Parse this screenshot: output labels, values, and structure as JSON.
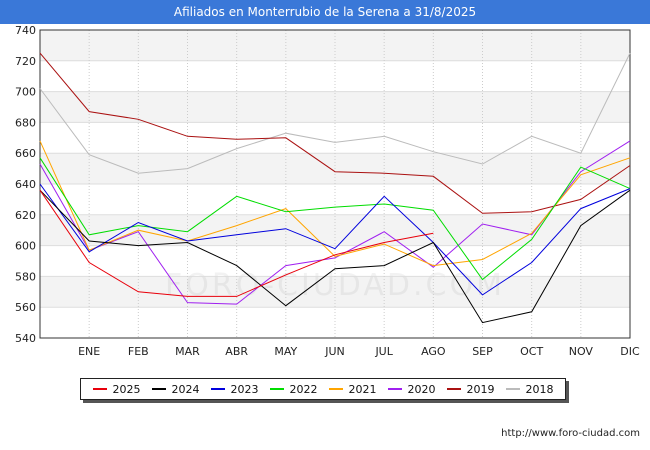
{
  "chart_data": {
    "type": "line",
    "title": "Afiliados en Monterrubio de la Serena a 31/8/2025",
    "xlabel": "",
    "ylabel": "",
    "ylim": [
      540,
      740
    ],
    "yticks": [
      540,
      560,
      580,
      600,
      620,
      640,
      660,
      680,
      700,
      720,
      740
    ],
    "categories": [
      "",
      "ENE",
      "FEB",
      "MAR",
      "ABR",
      "MAY",
      "JUN",
      "JUL",
      "AGO",
      "SEP",
      "OCT",
      "NOV",
      "DIC"
    ],
    "watermark": "FORO-CIUDAD.COM",
    "series": [
      {
        "name": "2025",
        "color": "#e8000b",
        "values": [
          636,
          589,
          570,
          567,
          567,
          581,
          594,
          602,
          608,
          null,
          null,
          null,
          null
        ]
      },
      {
        "name": "2024",
        "color": "#000000",
        "values": [
          636,
          603,
          600,
          602,
          587,
          561,
          585,
          587,
          602,
          550,
          557,
          613,
          636
        ]
      },
      {
        "name": "2023",
        "color": "#0000dd",
        "values": [
          640,
          596,
          615,
          603,
          607,
          611,
          598,
          632,
          602,
          568,
          589,
          624,
          637
        ]
      },
      {
        "name": "2022",
        "color": "#00dd00",
        "values": [
          657,
          607,
          613,
          609,
          632,
          622,
          625,
          627,
          623,
          578,
          604,
          651,
          637
        ]
      },
      {
        "name": "2021",
        "color": "#ffa500",
        "values": [
          668,
          597,
          610,
          603,
          613,
          624,
          593,
          601,
          587,
          591,
          608,
          646,
          657
        ]
      },
      {
        "name": "2020",
        "color": "#a020f0",
        "values": [
          653,
          597,
          609,
          563,
          562,
          587,
          592,
          609,
          586,
          614,
          607,
          648,
          668
        ]
      },
      {
        "name": "2019",
        "color": "#aa1111",
        "values": [
          725,
          687,
          682,
          671,
          669,
          670,
          648,
          647,
          645,
          621,
          622,
          630,
          652
        ]
      },
      {
        "name": "2018",
        "color": "#bbbbbb",
        "values": [
          702,
          659,
          647,
          650,
          663,
          673,
          667,
          671,
          661,
          653,
          671,
          660,
          725
        ]
      }
    ]
  },
  "source_text": "http://www.foro-ciudad.com"
}
